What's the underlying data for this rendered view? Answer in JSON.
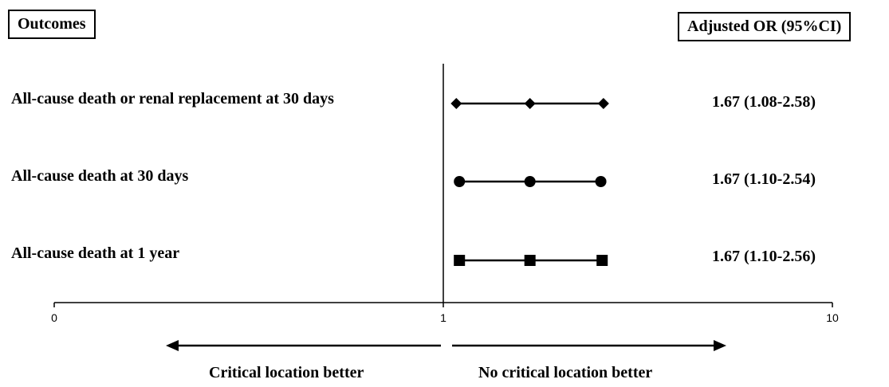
{
  "headers": {
    "outcomes": "Outcomes",
    "or": "Adjusted OR (95%CI)"
  },
  "chart_data": {
    "type": "forest",
    "x_scale": "log",
    "x_ticks": [
      {
        "label": "0",
        "value": 0.1
      },
      {
        "label": "1",
        "value": 1
      },
      {
        "label": "10",
        "value": 10
      }
    ],
    "reference_line": 1,
    "rows": [
      {
        "label": "All-cause death or renal replacement at 30 days",
        "or": 1.67,
        "lower": 1.08,
        "upper": 2.58,
        "or_text": "1.67 (1.08-2.58)",
        "marker": "diamond"
      },
      {
        "label": "All-cause death at 30 days",
        "or": 1.67,
        "lower": 1.1,
        "upper": 2.54,
        "or_text": "1.67 (1.10-2.54)",
        "marker": "circle"
      },
      {
        "label": "All-cause death at 1 year",
        "or": 1.67,
        "lower": 1.1,
        "upper": 2.56,
        "or_text": "1.67 (1.10-2.56)",
        "marker": "square"
      }
    ],
    "directions": {
      "left": "Critical location better",
      "right": "No critical location better"
    }
  }
}
